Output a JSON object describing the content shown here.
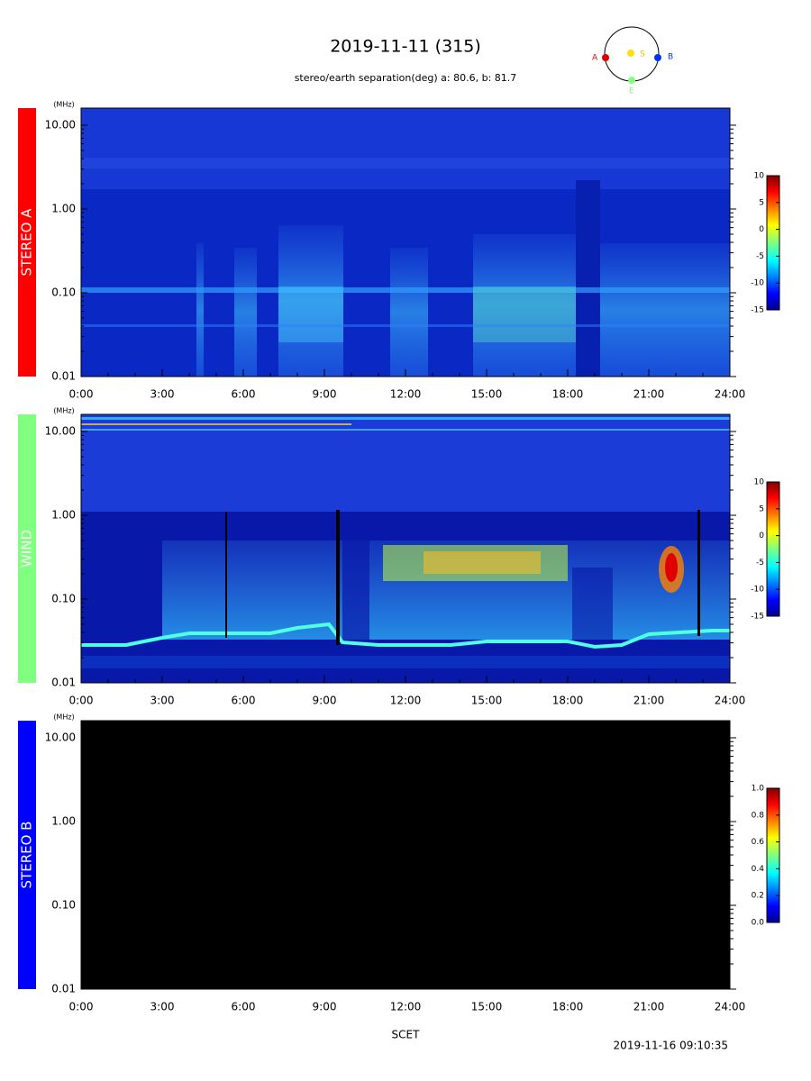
{
  "title": "2019-11-11 (315)",
  "subtitle": "stereo/earth separation(deg) a:  80.6, b:  81.7",
  "orbit": {
    "labels": [
      "A",
      "S",
      "B",
      "E"
    ]
  },
  "x_label": "SCET",
  "timestamp": "2019-11-16 09:10:35",
  "chart_data": [
    {
      "type": "spectrogram",
      "panel_label": "STEREO A",
      "label_color": "#ff0000",
      "y_unit": "(MHz)",
      "log_scale": true,
      "ylim": [
        0.01,
        16
      ],
      "yticks": [
        {
          "value": 10,
          "label": "10.00"
        },
        {
          "value": 1,
          "label": "1.00"
        },
        {
          "value": 0.1,
          "label": "0.10"
        },
        {
          "value": 0.01,
          "label": "0.01"
        }
      ],
      "xlim": [
        0,
        24
      ],
      "xticks": [
        {
          "value": 0,
          "label": "0:00"
        },
        {
          "value": 3,
          "label": "3:00"
        },
        {
          "value": 6,
          "label": "6:00"
        },
        {
          "value": 9,
          "label": "9:00"
        },
        {
          "value": 12,
          "label": "12:00"
        },
        {
          "value": 15,
          "label": "15:00"
        },
        {
          "value": 18,
          "label": "18:00"
        },
        {
          "value": 21,
          "label": "21:00"
        },
        {
          "value": 24,
          "label": "24:00"
        }
      ],
      "colorbar": {
        "lim": [
          -15,
          10
        ],
        "ticks": [
          10,
          5,
          0,
          -5,
          -10,
          -15
        ]
      }
    },
    {
      "type": "spectrogram",
      "panel_label": "WIND",
      "label_color": "#80ff80",
      "y_unit": "(MHz)",
      "log_scale": true,
      "ylim": [
        0.01,
        16
      ],
      "yticks": [
        {
          "value": 10,
          "label": "10.00"
        },
        {
          "value": 1,
          "label": "1.00"
        },
        {
          "value": 0.1,
          "label": "0.10"
        },
        {
          "value": 0.01,
          "label": "0.01"
        }
      ],
      "xlim": [
        0,
        24
      ],
      "xticks": [
        {
          "value": 0,
          "label": "0:00"
        },
        {
          "value": 3,
          "label": "3:00"
        },
        {
          "value": 6,
          "label": "6:00"
        },
        {
          "value": 9,
          "label": "9:00"
        },
        {
          "value": 12,
          "label": "12:00"
        },
        {
          "value": 15,
          "label": "15:00"
        },
        {
          "value": 18,
          "label": "18:00"
        },
        {
          "value": 21,
          "label": "21:00"
        },
        {
          "value": 24,
          "label": "24:00"
        }
      ],
      "colorbar": {
        "lim": [
          -15,
          10
        ],
        "ticks": [
          10,
          5,
          0,
          -5,
          -10,
          -15
        ]
      }
    },
    {
      "type": "spectrogram",
      "panel_label": "STEREO B",
      "label_color": "#0000ff",
      "y_unit": "(MHz)",
      "log_scale": true,
      "ylim": [
        0.01,
        16
      ],
      "yticks": [
        {
          "value": 10,
          "label": "10.00"
        },
        {
          "value": 1,
          "label": "1.00"
        },
        {
          "value": 0.1,
          "label": "0.10"
        },
        {
          "value": 0.01,
          "label": "0.01"
        }
      ],
      "xlim": [
        0,
        24
      ],
      "xticks": [
        {
          "value": 0,
          "label": "0:00"
        },
        {
          "value": 3,
          "label": "3:00"
        },
        {
          "value": 6,
          "label": "6:00"
        },
        {
          "value": 9,
          "label": "9:00"
        },
        {
          "value": 12,
          "label": "12:00"
        },
        {
          "value": 15,
          "label": "15:00"
        },
        {
          "value": 18,
          "label": "18:00"
        },
        {
          "value": 21,
          "label": "21:00"
        },
        {
          "value": 24,
          "label": "24:00"
        }
      ],
      "colorbar": {
        "lim": [
          0,
          1
        ],
        "ticks": [
          {
            "value": 1,
            "label": "1.0"
          },
          {
            "value": 0.8,
            "label": "0.8"
          },
          {
            "value": 0.6,
            "label": "0.6"
          },
          {
            "value": 0.4,
            "label": "0.4"
          },
          {
            "value": 0.2,
            "label": "0.2"
          },
          {
            "value": 0,
            "label": "0.0"
          }
        ]
      }
    }
  ]
}
